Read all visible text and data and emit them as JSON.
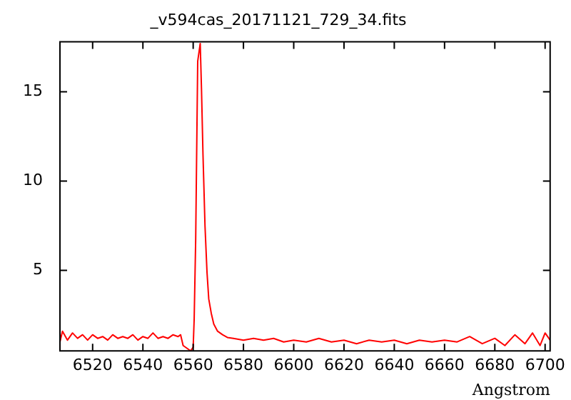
{
  "chart_data": {
    "type": "line",
    "title": "_v594cas_20171121_729_34.fits",
    "xlabel": "Angstrom",
    "series": [
      {
        "color": "#ff0000",
        "x": [
          6507,
          6508,
          6510,
          6512,
          6514,
          6516,
          6518,
          6520,
          6522,
          6524,
          6526,
          6528,
          6530,
          6532,
          6534,
          6536,
          6538,
          6540,
          6542,
          6544,
          6546,
          6548,
          6550,
          6552,
          6554,
          6555,
          6556,
          6557,
          6558,
          6559,
          6560,
          6560.4,
          6561,
          6561.8,
          6562.8,
          6563.3,
          6563.9,
          6564.7,
          6565.5,
          6566.2,
          6567.2,
          6568.2,
          6569.7,
          6571.7,
          6573.6,
          6576,
          6580,
          6584,
          6588,
          6592,
          6596,
          6600,
          6605,
          6610,
          6615,
          6620,
          6625,
          6630,
          6635,
          6640,
          6645,
          6650,
          6655,
          6660,
          6665,
          6670,
          6675,
          6680,
          6684,
          6688,
          6692,
          6695,
          6698,
          6700,
          6702
        ],
        "values": [
          1.0,
          1.6,
          1.1,
          1.5,
          1.2,
          1.4,
          1.1,
          1.4,
          1.2,
          1.3,
          1.1,
          1.4,
          1.2,
          1.3,
          1.2,
          1.4,
          1.1,
          1.3,
          1.2,
          1.5,
          1.2,
          1.3,
          1.2,
          1.4,
          1.3,
          1.4,
          0.8,
          0.7,
          0.6,
          0.5,
          0.7,
          2.3,
          6.75,
          16.7,
          17.7,
          15.2,
          11.5,
          7.5,
          4.9,
          3.4,
          2.6,
          2.0,
          1.6,
          1.4,
          1.25,
          1.2,
          1.1,
          1.2,
          1.1,
          1.2,
          1.0,
          1.1,
          1.0,
          1.2,
          1.0,
          1.1,
          0.9,
          1.1,
          1.0,
          1.1,
          0.9,
          1.1,
          1.0,
          1.1,
          1.0,
          1.3,
          0.9,
          1.2,
          0.8,
          1.4,
          0.9,
          1.5,
          0.8,
          1.5,
          1.1
        ]
      }
    ],
    "xlim": [
      6507,
      6702
    ],
    "ylim": [
      0.5,
      17.8
    ],
    "xticks": [
      6520,
      6540,
      6560,
      6580,
      6600,
      6620,
      6640,
      6660,
      6680,
      6700
    ],
    "yticks": [
      5,
      10,
      15
    ],
    "grid": false,
    "legend": false
  }
}
